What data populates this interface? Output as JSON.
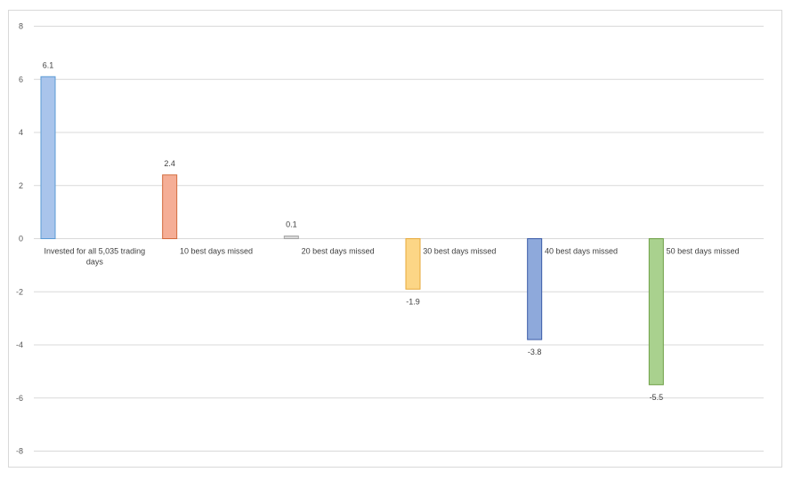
{
  "chart_data": {
    "type": "bar",
    "title": "",
    "xlabel": "",
    "ylabel": "",
    "ylim": [
      -8,
      8
    ],
    "yticks": [
      8,
      6,
      4,
      2,
      0,
      -2,
      -4,
      -6,
      -8
    ],
    "grid": true,
    "legend": "none",
    "categories": [
      "Invested for all 5,035 trading days",
      "10 best days missed",
      "20 best days missed",
      "30 best days missed",
      "40 best days missed",
      "50 best days missed"
    ],
    "values": [
      6.1,
      2.4,
      0.1,
      -1.9,
      -3.8,
      -5.5
    ],
    "data_labels": [
      "6.1",
      "2.4",
      "0.1",
      "-1.9",
      "-3.8",
      "-5.5"
    ],
    "colors": {
      "fills": [
        "#a9c4eb",
        "#f5ae96",
        "#d9d9d9",
        "#fcd686",
        "#8ea9db",
        "#a9d18e"
      ],
      "strokes": [
        "#5b9bd5",
        "#d26b3d",
        "#a6a6a6",
        "#e7a93a",
        "#3a5ba8",
        "#6e9f45"
      ],
      "grid": "#d9d9d9",
      "zero_line": "#d9d9d9"
    }
  }
}
